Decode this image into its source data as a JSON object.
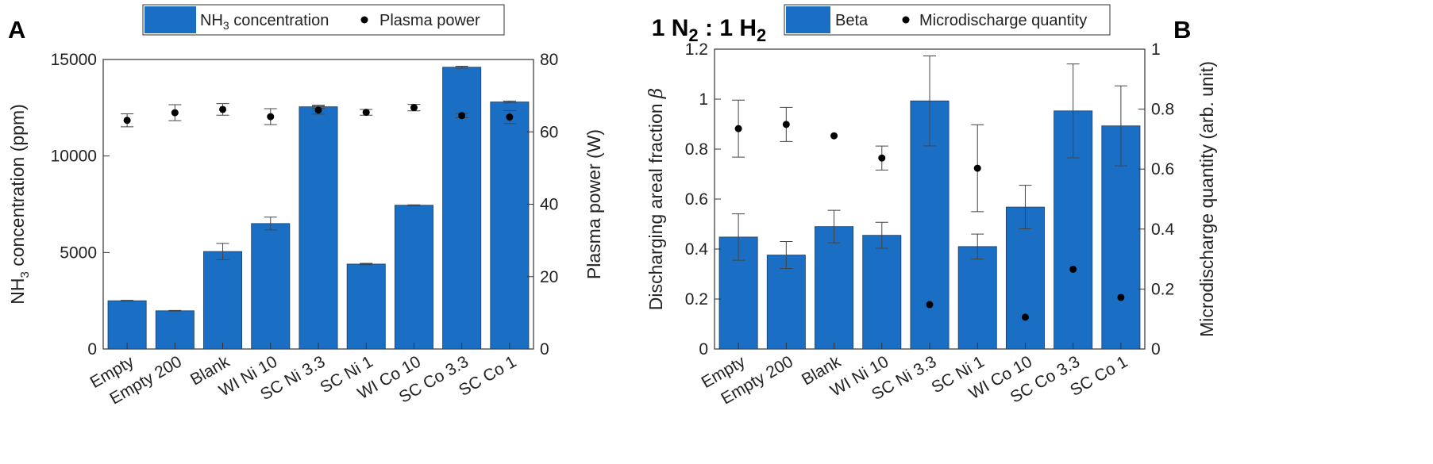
{
  "figure_title": {
    "main": "1 N",
    "sub1": "2",
    "mid": " : 1 H",
    "sub2": "2"
  },
  "chart_data": [
    {
      "type": "bar",
      "panel": "A",
      "categories": [
        "Empty",
        "Empty 200",
        "Blank",
        "WI Ni 10",
        "SC Ni 3.3",
        "SC Ni 1",
        "WI Co 10",
        "SC Co 3.3",
        "SC Co 1"
      ],
      "ylabel": {
        "pre": "NH",
        "sub": "3",
        "post": " concentration (ppm)"
      },
      "y2label": "Plasma power (W)",
      "ylim": [
        0,
        15000
      ],
      "y2lim": [
        0,
        80
      ],
      "yticks": [
        0,
        5000,
        10000,
        15000
      ],
      "y2ticks": [
        0,
        20,
        40,
        60,
        80
      ],
      "bar_color": "#1a6fc4",
      "series": [
        {
          "legend": {
            "pre": "NH",
            "sub": "3",
            "post": " concentration"
          },
          "type": "bar",
          "axis": "left",
          "values": [
            2500,
            1980,
            5050,
            6500,
            12550,
            4400,
            7450,
            14600,
            12800
          ],
          "errors": [
            20,
            20,
            420,
            330,
            80,
            40,
            20,
            50,
            50
          ]
        },
        {
          "legend": {
            "pre": "Plasma power",
            "sub": "",
            "post": ""
          },
          "type": "scatter",
          "axis": "right",
          "values": [
            63.2,
            65.3,
            66.2,
            64.2,
            66.0,
            65.4,
            66.7,
            64.5,
            64.1
          ],
          "errors": [
            1.8,
            2.2,
            1.6,
            2.2,
            1.1,
            0.8,
            0.9,
            0.6,
            1.8
          ]
        }
      ],
      "legend_placement": "top",
      "grid": false
    },
    {
      "type": "bar",
      "panel": "B",
      "categories": [
        "Empty",
        "Empty 200",
        "Blank",
        "WI Ni 10",
        "SC Ni 3.3",
        "SC Ni 1",
        "WI Co 10",
        "SC Co 3.3",
        "SC Co 1"
      ],
      "ylabel": {
        "pre": "Discharging areal fraction ",
        "sub": "",
        "post": "β"
      },
      "y2label": "Microdischarge quantity (arb. unit)",
      "ylim": [
        0,
        1.2
      ],
      "y2lim": [
        0,
        1
      ],
      "yticks": [
        0,
        0.2,
        0.4,
        0.6,
        0.8,
        1,
        1.2
      ],
      "y2ticks": [
        0,
        0.2,
        0.4,
        0.6,
        0.8,
        1
      ],
      "bar_color": "#1a6fc4",
      "series": [
        {
          "legend": {
            "pre": "Beta",
            "sub": "",
            "post": ""
          },
          "type": "bar",
          "axis": "left",
          "values": [
            0.448,
            0.376,
            0.49,
            0.455,
            0.993,
            0.41,
            0.568,
            0.953,
            0.893
          ],
          "errors": [
            0.093,
            0.054,
            0.065,
            0.052,
            0.18,
            0.05,
            0.087,
            0.188,
            0.16
          ]
        },
        {
          "legend": {
            "pre": "Microdischarge quantity",
            "sub": "",
            "post": ""
          },
          "type": "scatter",
          "axis": "right",
          "values": [
            0.735,
            0.749,
            0.711,
            0.637,
            0.148,
            0.603,
            0.106,
            0.266,
            0.172
          ],
          "errors": [
            0.095,
            0.057,
            0.0,
            0.04,
            0.0,
            0.145,
            0.0,
            0.0,
            0.0
          ]
        }
      ],
      "legend_placement": "top",
      "grid": false
    }
  ]
}
